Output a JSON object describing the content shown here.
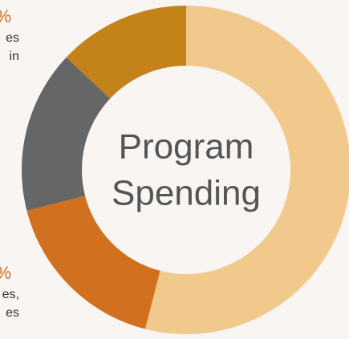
{
  "chart_data": {
    "type": "donut",
    "center_label": [
      "Program",
      "Spending"
    ],
    "values": [
      54,
      17,
      16,
      13
    ],
    "colors": [
      "#f2c98c",
      "#d1711f",
      "#666666",
      "#c4821b"
    ],
    "annotations": [
      {
        "percent": "%",
        "lines": [
          "es",
          "in"
        ]
      },
      {
        "percent": "%",
        "lines": [
          "es,",
          "es"
        ]
      }
    ]
  }
}
